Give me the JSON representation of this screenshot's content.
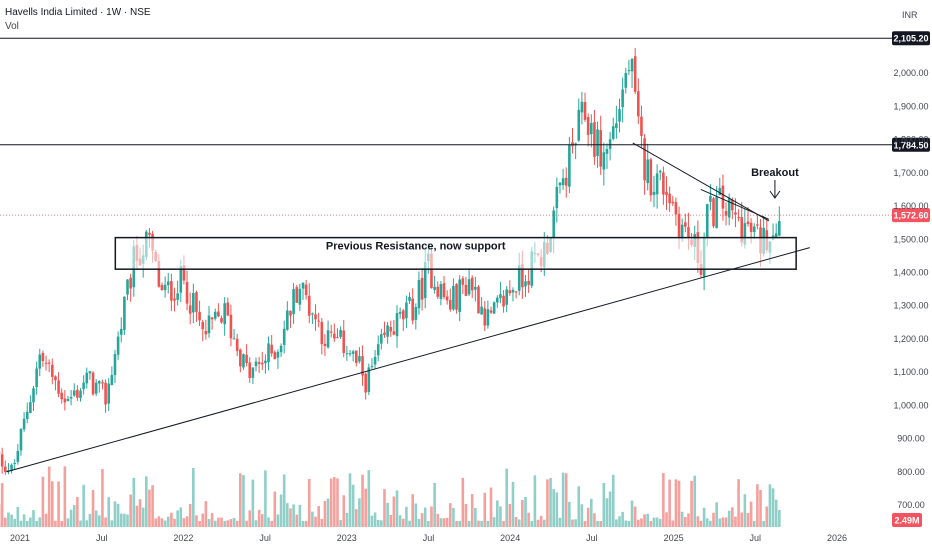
{
  "header": {
    "title": "Havells India Limited · 1W · NSE",
    "volume_label": "Vol",
    "currency": "INR"
  },
  "colors": {
    "up": "#26a69a",
    "down": "#ef5350",
    "up_vol": "#8fcfc8",
    "down_vol": "#f4a09d",
    "line": "#131722",
    "price_line": "#ef5350"
  },
  "chart_data": {
    "type": "candlestick",
    "title": "Havells India Limited · 1W · NSE",
    "x_ticks": [
      "2021",
      "Jul",
      "2022",
      "Jul",
      "2023",
      "Jul",
      "2024",
      "Jul",
      "2025",
      "Jul",
      "2026"
    ],
    "y_ticks": [
      700,
      800,
      900,
      1000,
      1100,
      1200,
      1300,
      1400,
      1500,
      1600,
      1700,
      1800,
      1900,
      2000
    ],
    "y_tick_labels": [
      "700.00",
      "800.00",
      "900.00",
      "1,000.00",
      "1,100.00",
      "1,200.00",
      "1,300.00",
      "1,400.00",
      "1,500.00",
      "1,600.00",
      "1,700.00",
      "1,800.00",
      "1,900.00",
      "2,000.00"
    ],
    "ylim": [
      640,
      2160
    ],
    "horizontal_levels": [
      {
        "value": 2105.2,
        "label": "2,105.20"
      },
      {
        "value": 1784.5,
        "label": "1,784.50"
      }
    ],
    "last_price": {
      "value": 1572.6,
      "label": "1,572.60"
    },
    "volume_badge": "2.49M",
    "support_zone": {
      "low": 1410,
      "high": 1505,
      "start": "2021-08",
      "end": "2025-10",
      "label": "Previous Resistance, now support"
    },
    "annotation": {
      "text": "Breakout",
      "date": "2025-08"
    },
    "trendlines": [
      {
        "name": "rising support",
        "from": {
          "date": "2020-12",
          "price": 800
        },
        "to": {
          "date": "2025-11",
          "price": 1475
        }
      },
      {
        "name": "falling resistance",
        "from": {
          "date": "2024-10",
          "price": 1790
        },
        "to": {
          "date": "2025-08",
          "price": 1555
        }
      },
      {
        "name": "wedge top",
        "from": {
          "date": "2025-03",
          "price": 1650
        },
        "to": {
          "date": "2025-08",
          "price": 1560
        }
      }
    ],
    "anchors": [
      [
        "2020-11-01",
        860
      ],
      [
        "2020-12-15",
        800
      ],
      [
        "2021-02-15",
        1150
      ],
      [
        "2021-04-15",
        1010
      ],
      [
        "2021-06-01",
        1080
      ],
      [
        "2021-07-10",
        1020
      ],
      [
        "2021-09-15",
        1450
      ],
      [
        "2021-10-15",
        1490
      ],
      [
        "2021-11-15",
        1330
      ],
      [
        "2022-01-01",
        1380
      ],
      [
        "2022-02-15",
        1210
      ],
      [
        "2022-04-01",
        1280
      ],
      [
        "2022-05-25",
        1090
      ],
      [
        "2022-08-01",
        1180
      ],
      [
        "2022-09-15",
        1370
      ],
      [
        "2022-11-15",
        1200
      ],
      [
        "2023-01-01",
        1180
      ],
      [
        "2023-02-15",
        1070
      ],
      [
        "2023-04-01",
        1220
      ],
      [
        "2023-06-01",
        1300
      ],
      [
        "2023-07-01",
        1420
      ],
      [
        "2023-08-15",
        1300
      ],
      [
        "2023-10-01",
        1380
      ],
      [
        "2023-11-15",
        1250
      ],
      [
        "2024-01-01",
        1350
      ],
      [
        "2024-03-15",
        1460
      ],
      [
        "2024-04-15",
        1610
      ],
      [
        "2024-05-25",
        1800
      ],
      [
        "2024-06-15",
        1880
      ],
      [
        "2024-07-25",
        1740
      ],
      [
        "2024-08-15",
        1810
      ],
      [
        "2024-09-25",
        2040
      ],
      [
        "2024-10-15",
        1800
      ],
      [
        "2024-11-01",
        1700
      ],
      [
        "2024-12-15",
        1660
      ],
      [
        "2025-01-15",
        1550
      ],
      [
        "2025-02-15",
        1480
      ],
      [
        "2025-03-01",
        1430
      ],
      [
        "2025-03-15",
        1570
      ],
      [
        "2025-04-15",
        1610
      ],
      [
        "2025-05-15",
        1560
      ],
      [
        "2025-06-15",
        1530
      ],
      [
        "2025-07-15",
        1490
      ],
      [
        "2025-08-25",
        1572
      ]
    ]
  }
}
